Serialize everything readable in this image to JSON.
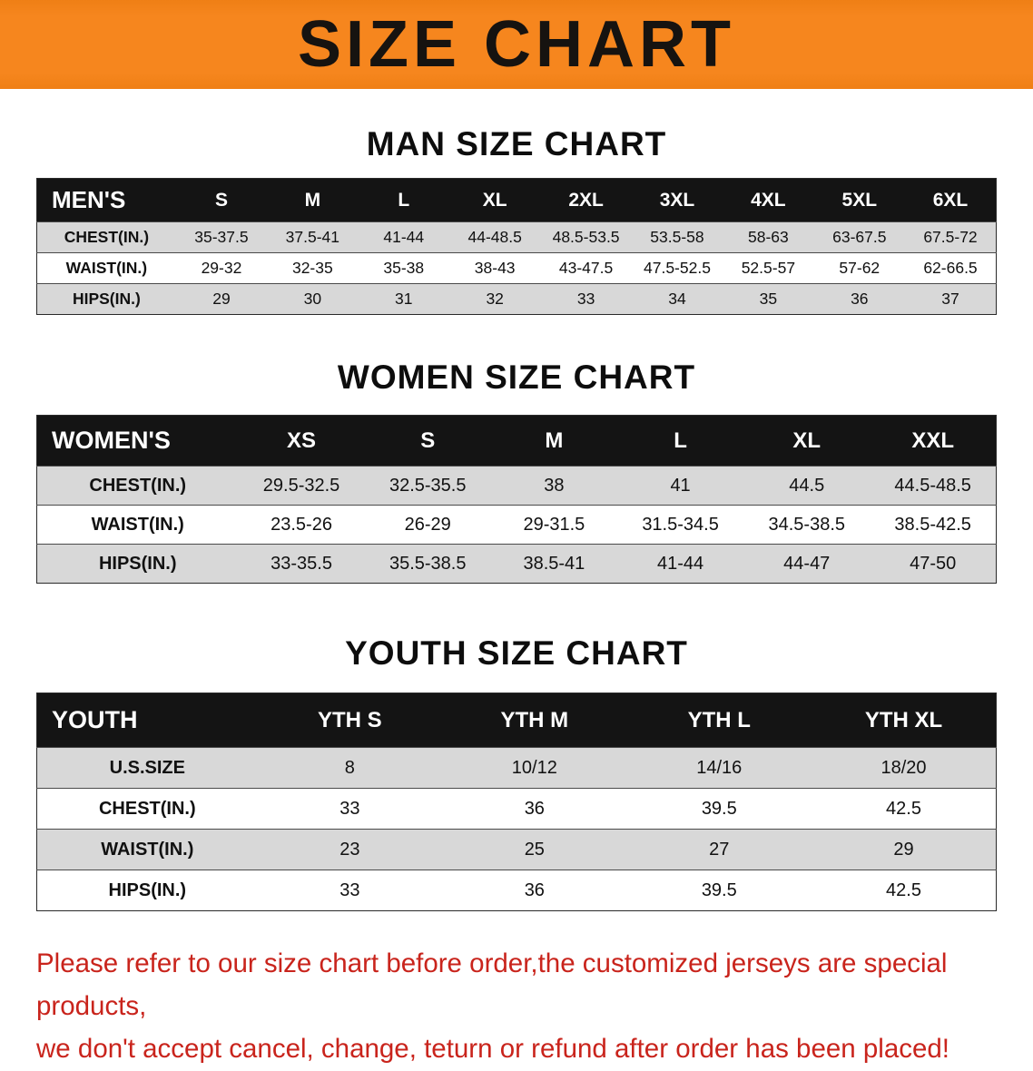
{
  "banner": {
    "title": "SIZE CHART"
  },
  "colors": {
    "banner_bg": "#f6861e",
    "header_bg": "#141414",
    "row_alt": "#d8d8d8",
    "accent_red": "#c9241c"
  },
  "chart_data": [
    {
      "type": "table",
      "title": "MAN SIZE CHART",
      "columns": [
        "MEN'S",
        "S",
        "M",
        "L",
        "XL",
        "2XL",
        "3XL",
        "4XL",
        "5XL",
        "6XL"
      ],
      "rows": [
        [
          "CHEST(IN.)",
          "35-37.5",
          "37.5-41",
          "41-44",
          "44-48.5",
          "48.5-53.5",
          "53.5-58",
          "58-63",
          "63-67.5",
          "67.5-72"
        ],
        [
          "WAIST(IN.)",
          "29-32",
          "32-35",
          "35-38",
          "38-43",
          "43-47.5",
          "47.5-52.5",
          "52.5-57",
          "57-62",
          "62-66.5"
        ],
        [
          "HIPS(IN.)",
          "29",
          "30",
          "31",
          "32",
          "33",
          "34",
          "35",
          "36",
          "37"
        ]
      ]
    },
    {
      "type": "table",
      "title": "WOMEN SIZE CHART",
      "columns": [
        "WOMEN'S",
        "XS",
        "S",
        "M",
        "L",
        "XL",
        "XXL"
      ],
      "rows": [
        [
          "CHEST(IN.)",
          "29.5-32.5",
          "32.5-35.5",
          "38",
          "41",
          "44.5",
          "44.5-48.5"
        ],
        [
          "WAIST(IN.)",
          "23.5-26",
          "26-29",
          "29-31.5",
          "31.5-34.5",
          "34.5-38.5",
          "38.5-42.5"
        ],
        [
          "HIPS(IN.)",
          "33-35.5",
          "35.5-38.5",
          "38.5-41",
          "41-44",
          "44-47",
          "47-50"
        ]
      ]
    },
    {
      "type": "table",
      "title": "YOUTH SIZE CHART",
      "columns": [
        "YOUTH",
        "YTH S",
        "YTH M",
        "YTH L",
        "YTH XL"
      ],
      "rows": [
        [
          "U.S.SIZE",
          "8",
          "10/12",
          "14/16",
          "18/20"
        ],
        [
          "CHEST(IN.)",
          "33",
          "36",
          "39.5",
          "42.5"
        ],
        [
          "WAIST(IN.)",
          "23",
          "25",
          "27",
          "29"
        ],
        [
          "HIPS(IN.)",
          "33",
          "36",
          "39.5",
          "42.5"
        ]
      ]
    }
  ],
  "footer": {
    "line1": "Please refer to our size chart before order,the customized jerseys are special products,",
    "line2": "we don't accept cancel, change, teturn or refund after order has been placed!"
  }
}
